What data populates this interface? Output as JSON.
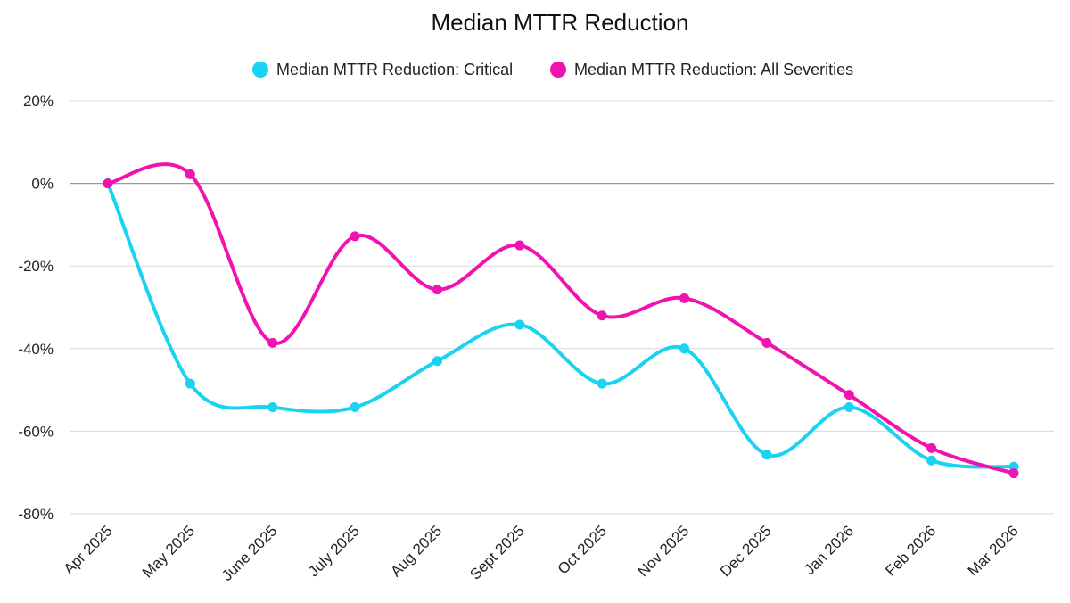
{
  "chart_data": {
    "type": "line",
    "title": "Median MTTR Reduction",
    "xlabel": "",
    "ylabel": "",
    "categories": [
      "Apr 2025",
      "May 2025",
      "June 2025",
      "July 2025",
      "Aug 2025",
      "Sept 2025",
      "Oct 2025",
      "Nov 2025",
      "Dec 2025",
      "Jan 2026",
      "Feb 2026",
      "Mar 2026"
    ],
    "ylim": [
      -80,
      20
    ],
    "yticks": [
      20,
      0,
      -20,
      -40,
      -60,
      -80
    ],
    "ytick_labels": [
      "20%",
      "0%",
      "-20%",
      "-40%",
      "-60%",
      "-80%"
    ],
    "grid": true,
    "legend_position": "top-center",
    "smooth": true,
    "series": [
      {
        "name": "Median MTTR Reduction: Critical",
        "color": "#1ad3f0",
        "values": [
          0,
          -48.5,
          -54.2,
          -54.2,
          -43,
          -34.2,
          -48.5,
          -40,
          -65.7,
          -54.2,
          -67.1,
          -68.6
        ]
      },
      {
        "name": "Median MTTR Reduction: All Severities",
        "color": "#f013b0",
        "values": [
          0,
          2.2,
          -38.6,
          -12.8,
          -25.7,
          -15,
          -32,
          -27.8,
          -38.6,
          -51.2,
          -64.1,
          -70.2
        ]
      }
    ]
  }
}
